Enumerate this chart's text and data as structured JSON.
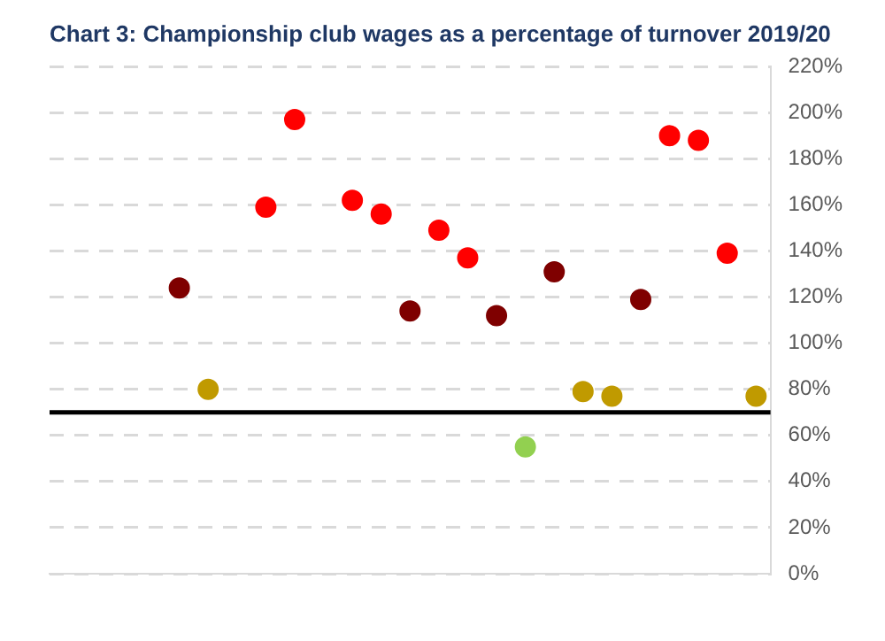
{
  "chart_data": {
    "type": "scatter",
    "title": "Chart 3: Championship club wages as a percentage of turnover 2019/20",
    "categories": [
      null,
      null,
      null,
      null,
      null,
      null,
      null,
      null,
      null,
      null,
      null,
      null,
      null,
      null,
      null,
      null,
      null,
      null,
      null,
      null,
      null,
      null,
      null,
      null,
      null
    ],
    "values": [
      null,
      null,
      null,
      null,
      124,
      80,
      null,
      159,
      197,
      null,
      162,
      156,
      114,
      149,
      137,
      112,
      55,
      131,
      79,
      77,
      119,
      190,
      188,
      139,
      77
    ],
    "colors": [
      "#ff0000",
      "#ff0000",
      "#ff0000",
      "#ff0000",
      "#7f0000",
      "#c09a00",
      "#ff0000",
      "#ff0000",
      "#ff0000",
      "#ff0000",
      "#ff0000",
      "#ff0000",
      "#7f0000",
      "#ff0000",
      "#ff0000",
      "#7f0000",
      "#92d050",
      "#7f0000",
      "#c09a00",
      "#c09a00",
      "#7f0000",
      "#ff0000",
      "#ff0000",
      "#ff0000",
      "#c09a00"
    ],
    "ylim": [
      0,
      220
    ],
    "yticks": [
      {
        "value": 0,
        "label": "0%"
      },
      {
        "value": 20,
        "label": "20%"
      },
      {
        "value": 40,
        "label": "40%"
      },
      {
        "value": 60,
        "label": "60%"
      },
      {
        "value": 80,
        "label": "80%"
      },
      {
        "value": 100,
        "label": "100%"
      },
      {
        "value": 120,
        "label": "120%"
      },
      {
        "value": 140,
        "label": "140%"
      },
      {
        "value": 160,
        "label": "160%"
      },
      {
        "value": 180,
        "label": "180%"
      },
      {
        "value": 200,
        "label": "200%"
      },
      {
        "value": 220,
        "label": "220%"
      }
    ],
    "grid": "y",
    "marker": "circle",
    "legend": false,
    "ref_lines": [
      {
        "axis": "y",
        "value": 70,
        "color": "#000000"
      }
    ]
  }
}
